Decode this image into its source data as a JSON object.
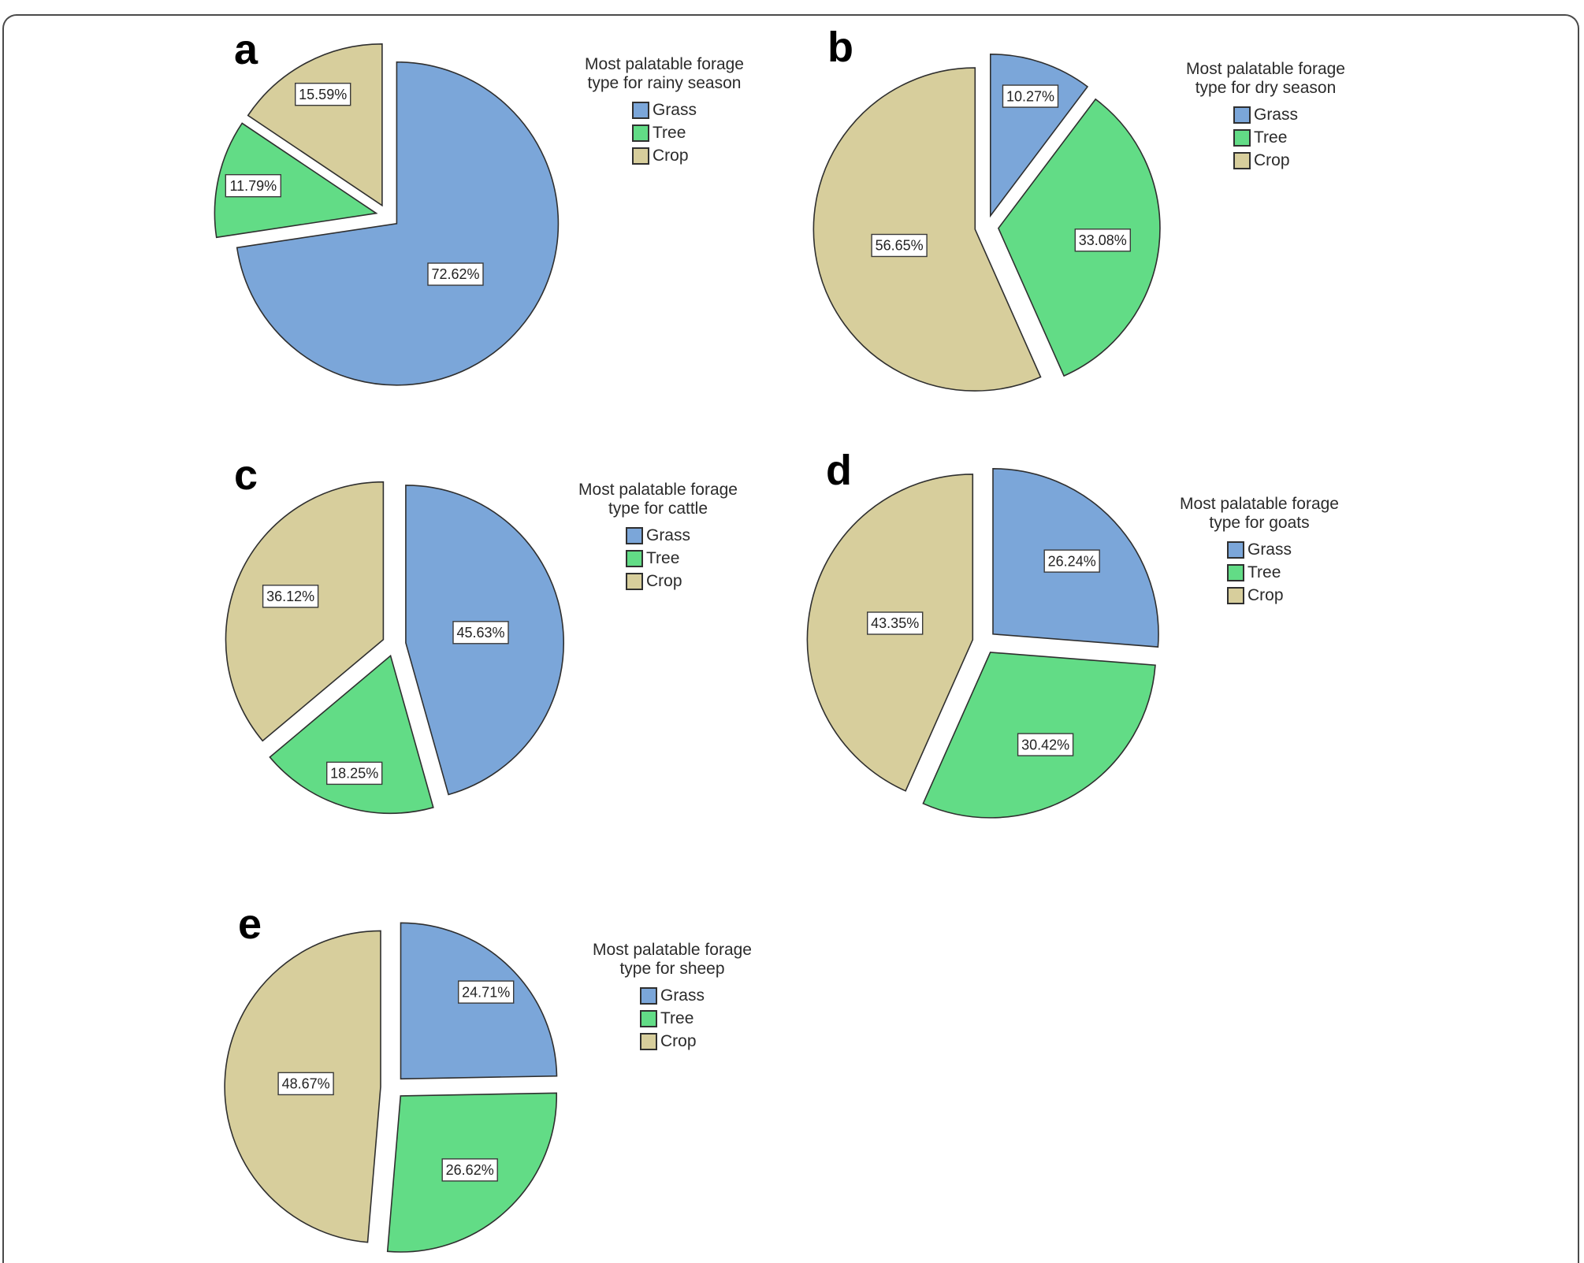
{
  "style": {
    "grass_color": "#7BA6D9",
    "tree_color": "#62DC86",
    "crop_color": "#D7CE9C",
    "slice_outline": "#2F2F2F",
    "label_box_bg": "#FFFFFF",
    "label_box_border": "#3A3A3A",
    "label_text_color": "#222222",
    "legend_text_color": "#2B2B2B",
    "frame_border": "#4A4A4A"
  },
  "chart_data": [
    {
      "type": "pie",
      "panel_label": "a",
      "title": "Most palatable forage type for rainy season",
      "legend_title_lines": [
        "Most palatable forage",
        "type for rainy season"
      ],
      "categories": [
        "Grass",
        "Tree",
        "Crop"
      ],
      "values": [
        72.62,
        11.79,
        15.59
      ],
      "labels": [
        "72.62%",
        "11.79%",
        "15.59%"
      ],
      "legend_position": "right",
      "start_angle_deg": 0,
      "direction": "clockwise",
      "exploded": true
    },
    {
      "type": "pie",
      "panel_label": "b",
      "title": "Most palatable forage type for dry season",
      "legend_title_lines": [
        "Most palatable forage",
        "type for dry season"
      ],
      "categories": [
        "Grass",
        "Tree",
        "Crop"
      ],
      "values": [
        10.27,
        33.08,
        56.65
      ],
      "labels": [
        "10.27%",
        "33.08%",
        "56.65%"
      ],
      "legend_position": "right",
      "start_angle_deg": 0,
      "direction": "clockwise",
      "exploded": true
    },
    {
      "type": "pie",
      "panel_label": "c",
      "title": "Most palatable forage type for cattle",
      "legend_title_lines": [
        "Most palatable forage",
        "type for cattle"
      ],
      "categories": [
        "Grass",
        "Tree",
        "Crop"
      ],
      "values": [
        45.63,
        18.25,
        36.12
      ],
      "labels": [
        "45.63%",
        "18.25%",
        "36.12%"
      ],
      "legend_position": "right",
      "start_angle_deg": 0,
      "direction": "clockwise",
      "exploded": true
    },
    {
      "type": "pie",
      "panel_label": "d",
      "title": "Most palatable forage type for goats",
      "legend_title_lines": [
        "Most palatable forage",
        "type for goats"
      ],
      "categories": [
        "Grass",
        "Tree",
        "Crop"
      ],
      "values": [
        26.24,
        30.42,
        43.35
      ],
      "labels": [
        "26.24%",
        "30.42%",
        "43.35%"
      ],
      "legend_position": "right",
      "start_angle_deg": 0,
      "direction": "clockwise",
      "exploded": true
    },
    {
      "type": "pie",
      "panel_label": "e",
      "title": "Most palatable forage type for sheep",
      "legend_title_lines": [
        "Most palatable forage",
        "type for sheep"
      ],
      "categories": [
        "Grass",
        "Tree",
        "Crop"
      ],
      "values": [
        24.71,
        26.62,
        48.67
      ],
      "labels": [
        "24.71%",
        "26.62%",
        "48.67%"
      ],
      "legend_position": "right",
      "start_angle_deg": 0,
      "direction": "clockwise",
      "exploded": true
    }
  ]
}
